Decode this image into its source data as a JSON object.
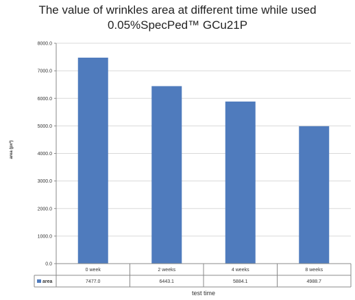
{
  "chart_data": {
    "type": "bar",
    "title_line1": "The value of wrinkles area at different time while used",
    "title_line2": "0.05%SpecPed™ GCu21P",
    "categories": [
      "0 week",
      "2 weeks",
      "4 weeks",
      "8 weeks"
    ],
    "series": [
      {
        "name": "area",
        "values": [
          7477.0,
          6443.1,
          5884.1,
          4988.7
        ],
        "value_labels": [
          "7477.0",
          "6443.1",
          "5884.1",
          "4988.7"
        ],
        "color": "#4f7bbd"
      }
    ],
    "ylabel": "area (px²)",
    "xlabel": "test time",
    "ylim": [
      0,
      8000
    ],
    "yticks": [
      "0.0",
      "1000.0",
      "2000.0",
      "3000.0",
      "4000.0",
      "5000.0",
      "6000.0",
      "7000.0",
      "8000.0"
    ],
    "grid": true,
    "data_table": true
  }
}
